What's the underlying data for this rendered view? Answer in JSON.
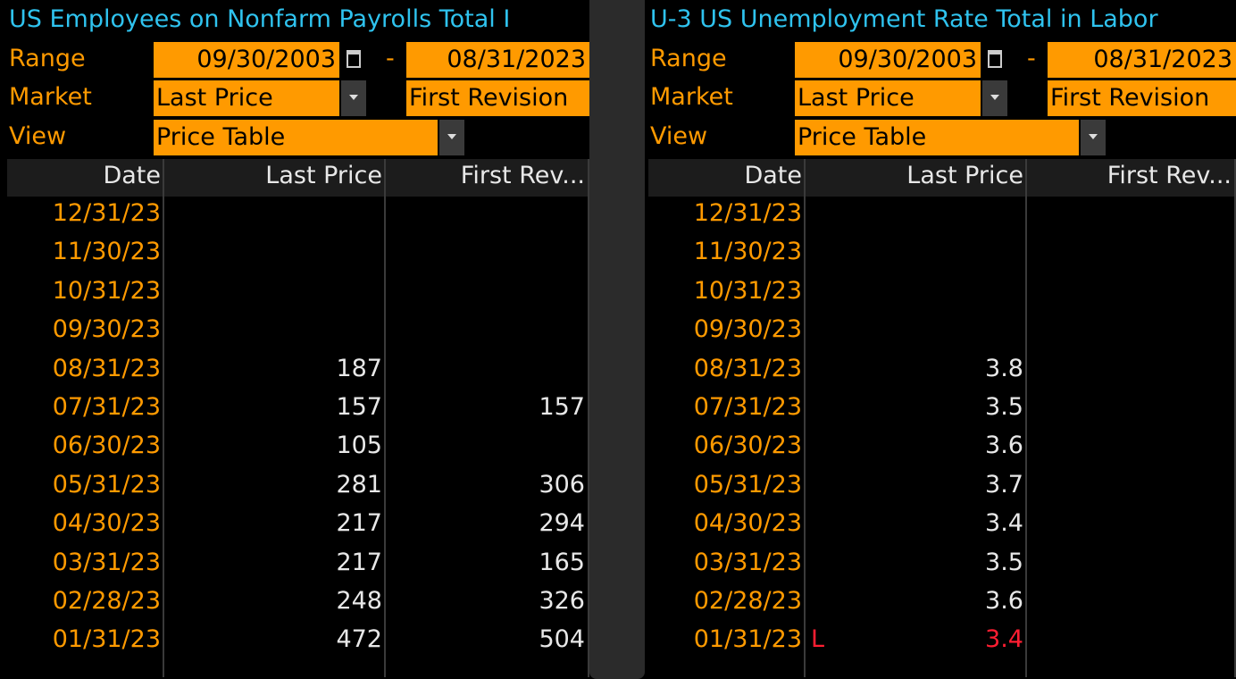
{
  "panels": [
    {
      "title": "US Employees on Nonfarm Payrolls Total I",
      "range": {
        "label": "Range",
        "start": "09/30/2003",
        "separator": "-",
        "end": "08/31/2023"
      },
      "market": {
        "label": "Market",
        "value": "Last Price",
        "second": "First Revision"
      },
      "view": {
        "label": "View",
        "value": "Price Table"
      },
      "table": {
        "columns": [
          "Date",
          "Last Price",
          "First Rev..."
        ],
        "rows": [
          {
            "date": "12/31/23",
            "last": null,
            "first": null
          },
          {
            "date": "11/30/23",
            "last": null,
            "first": null
          },
          {
            "date": "10/31/23",
            "last": null,
            "first": null
          },
          {
            "date": "09/30/23",
            "last": null,
            "first": null
          },
          {
            "date": "08/31/23",
            "last": 187,
            "first": null
          },
          {
            "date": "07/31/23",
            "last": 157,
            "first": 157
          },
          {
            "date": "06/30/23",
            "last": 105,
            "first": null
          },
          {
            "date": "05/31/23",
            "last": 281,
            "first": 306
          },
          {
            "date": "04/30/23",
            "last": 217,
            "first": 294
          },
          {
            "date": "03/31/23",
            "last": 217,
            "first": 165
          },
          {
            "date": "02/28/23",
            "last": 248,
            "first": 326
          },
          {
            "date": "01/31/23",
            "last": 472,
            "first": 504
          }
        ]
      }
    },
    {
      "title": "U-3 US Unemployment Rate Total in Labor",
      "range": {
        "label": "Range",
        "start": "09/30/2003",
        "separator": "-",
        "end": "08/31/2023"
      },
      "market": {
        "label": "Market",
        "value": "Last Price",
        "second": "First Revision"
      },
      "view": {
        "label": "View",
        "value": "Price Table"
      },
      "table": {
        "columns": [
          "Date",
          "Last Price",
          "First Rev..."
        ],
        "rows": [
          {
            "date": "12/31/23",
            "last": null,
            "first": null
          },
          {
            "date": "11/30/23",
            "last": null,
            "first": null
          },
          {
            "date": "10/31/23",
            "last": null,
            "first": null
          },
          {
            "date": "09/30/23",
            "last": null,
            "first": null
          },
          {
            "date": "08/31/23",
            "last": 3.8,
            "first": null
          },
          {
            "date": "07/31/23",
            "last": 3.5,
            "first": null
          },
          {
            "date": "06/30/23",
            "last": 3.6,
            "first": null
          },
          {
            "date": "05/31/23",
            "last": 3.7,
            "first": null
          },
          {
            "date": "04/30/23",
            "last": 3.4,
            "first": null
          },
          {
            "date": "03/31/23",
            "last": 3.5,
            "first": null
          },
          {
            "date": "02/28/23",
            "last": 3.6,
            "first": null
          },
          {
            "date": "01/31/23",
            "last": 3.4,
            "first": null,
            "flag": "L",
            "color": "#ff1e32"
          }
        ]
      }
    }
  ]
}
